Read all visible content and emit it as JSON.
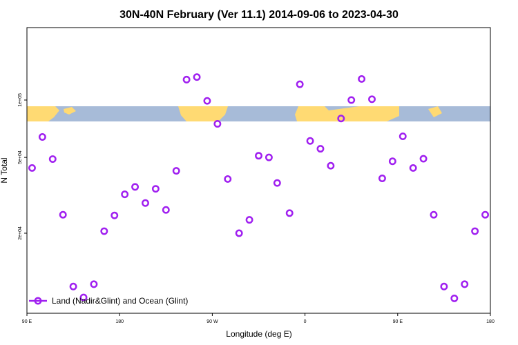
{
  "chart_data": {
    "type": "scatter",
    "title": "30N-40N February (Ver 11.1)   2014-09-06 to 2023-04-30",
    "xlabel": "Longitude (deg E)",
    "ylabel": "N Total",
    "y_scale": "log",
    "xlim": [
      90,
      540
    ],
    "ylim": [
      7600,
      240000
    ],
    "x_ticks": [
      {
        "value": 90,
        "label": "90 E"
      },
      {
        "value": 180,
        "label": "180"
      },
      {
        "value": 270,
        "label": "90 W"
      },
      {
        "value": 360,
        "label": "0"
      },
      {
        "value": 450,
        "label": "90 E"
      },
      {
        "value": 540,
        "label": "180"
      }
    ],
    "y_ticks": [
      {
        "value": 20000,
        "label": "2e+04"
      },
      {
        "value": 50000,
        "label": "5e+04"
      },
      {
        "value": 100000,
        "label": "1e+05"
      }
    ],
    "grid": false,
    "legend_position": "bottom-left",
    "background": "world map band (land and ocean) behind the points",
    "series": [
      {
        "name": "Land (Nadir&Glint) and Ocean (Glint)",
        "color": "#a020f0",
        "marker": "open circle",
        "points": [
          {
            "x": 95,
            "y": 44000
          },
          {
            "x": 105,
            "y": 64000
          },
          {
            "x": 115,
            "y": 49000
          },
          {
            "x": 125,
            "y": 25000
          },
          {
            "x": 135,
            "y": 10500
          },
          {
            "x": 145,
            "y": 9200
          },
          {
            "x": 155,
            "y": 10800
          },
          {
            "x": 165,
            "y": 20500
          },
          {
            "x": 175,
            "y": 24800
          },
          {
            "x": 185,
            "y": 32000
          },
          {
            "x": 195,
            "y": 35000
          },
          {
            "x": 205,
            "y": 28800
          },
          {
            "x": 215,
            "y": 34200
          },
          {
            "x": 225,
            "y": 26500
          },
          {
            "x": 235,
            "y": 42500
          },
          {
            "x": 245,
            "y": 128000
          },
          {
            "x": 255,
            "y": 132000
          },
          {
            "x": 265,
            "y": 99000
          },
          {
            "x": 275,
            "y": 75000
          },
          {
            "x": 285,
            "y": 38500
          },
          {
            "x": 296,
            "y": 20000
          },
          {
            "x": 306,
            "y": 23500
          },
          {
            "x": 315,
            "y": 51000
          },
          {
            "x": 325,
            "y": 50000
          },
          {
            "x": 333,
            "y": 36700
          },
          {
            "x": 345,
            "y": 25500
          },
          {
            "x": 355,
            "y": 121000
          },
          {
            "x": 365,
            "y": 61000
          },
          {
            "x": 375,
            "y": 55500
          },
          {
            "x": 385,
            "y": 45200
          },
          {
            "x": 395,
            "y": 80000
          },
          {
            "x": 405,
            "y": 100000
          },
          {
            "x": 415,
            "y": 129000
          },
          {
            "x": 425,
            "y": 101000
          },
          {
            "x": 435,
            "y": 38800
          },
          {
            "x": 445,
            "y": 47700
          },
          {
            "x": 455,
            "y": 64500
          },
          {
            "x": 465,
            "y": 44000
          },
          {
            "x": 475,
            "y": 49200
          },
          {
            "x": 485,
            "y": 25000
          },
          {
            "x": 495,
            "y": 10500
          },
          {
            "x": 505,
            "y": 9100
          },
          {
            "x": 515,
            "y": 10800
          },
          {
            "x": 525,
            "y": 20500
          },
          {
            "x": 535,
            "y": 25000
          }
        ]
      }
    ]
  }
}
